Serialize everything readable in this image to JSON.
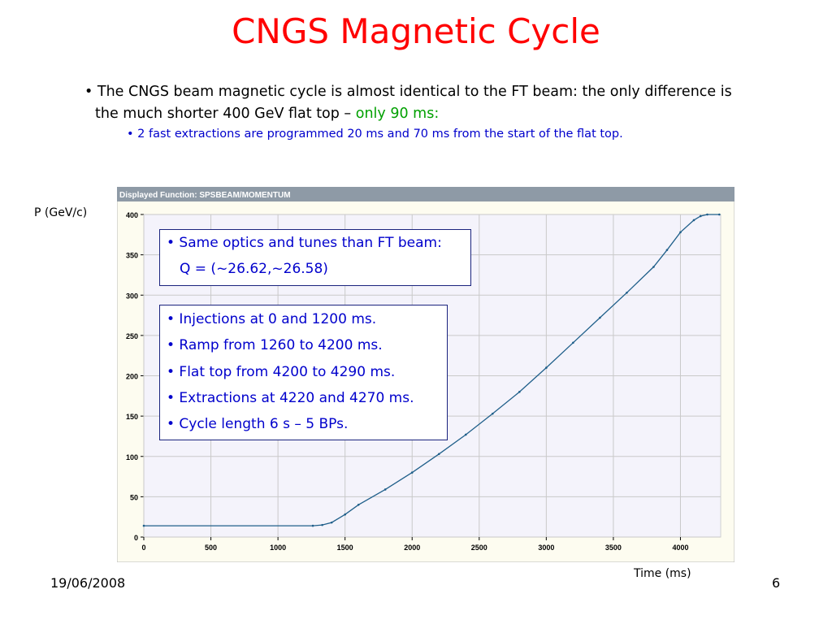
{
  "slide": {
    "title": "CNGS Magnetic Cycle",
    "bullet1_a": "• The CNGS beam magnetic cycle is almost identical to the FT beam: the only difference is",
    "bullet1_b": "the much shorter 400 GeV flat top – ",
    "bullet1_green": "only 90 ms:",
    "bullet2": "• 2 fast extractions  are programmed 20 ms and 70 ms from the start of the flat top.",
    "date": "19/06/2008",
    "page_number": "6"
  },
  "boxes": {
    "box1_line1": "• Same optics and tunes than FT beam:",
    "box1_line2": "Q = (~26.62,~26.58)",
    "box2_lines": [
      "• Injections at 0 and 1200 ms.",
      "• Ramp from 1260 to 4200 ms.",
      "• Flat top from 4200 to 4290 ms.",
      "• Extractions at 4220 and 4270 ms.",
      "• Cycle length 6 s – 5 BPs."
    ]
  },
  "chart_data": {
    "type": "line",
    "header": "Displayed Function: SPSBEAM/MOMENTUM",
    "ylabel": "P (GeV/c)",
    "xlabel": "Time (ms)",
    "xlim": [
      0,
      4300
    ],
    "ylim": [
      0,
      400
    ],
    "x_ticks": [
      0,
      500,
      1000,
      1500,
      2000,
      2500,
      3000,
      3500,
      4000
    ],
    "y_ticks": [
      0,
      50,
      100,
      150,
      200,
      250,
      300,
      350,
      400
    ],
    "grid": true,
    "colors": {
      "line": "#1f5f8a",
      "header_bg": "#8e9aa6",
      "plot_bg": "#f4f3fb",
      "grid": "#c9c9c9",
      "frame_bg": "#fdfcf0"
    },
    "series": [
      {
        "x": [
          0,
          1260,
          1330,
          1400,
          1500,
          1600,
          1800,
          2000,
          2200,
          2400,
          2600,
          2800,
          3000,
          3200,
          3400,
          3600,
          3800,
          3900,
          4000,
          4100,
          4150,
          4200,
          4290
        ],
        "values": [
          14,
          14,
          15,
          18,
          28,
          40,
          59,
          80,
          103,
          127,
          153,
          180,
          210,
          241,
          272,
          303,
          335,
          356,
          378,
          393,
          398,
          400,
          400
        ]
      }
    ]
  }
}
